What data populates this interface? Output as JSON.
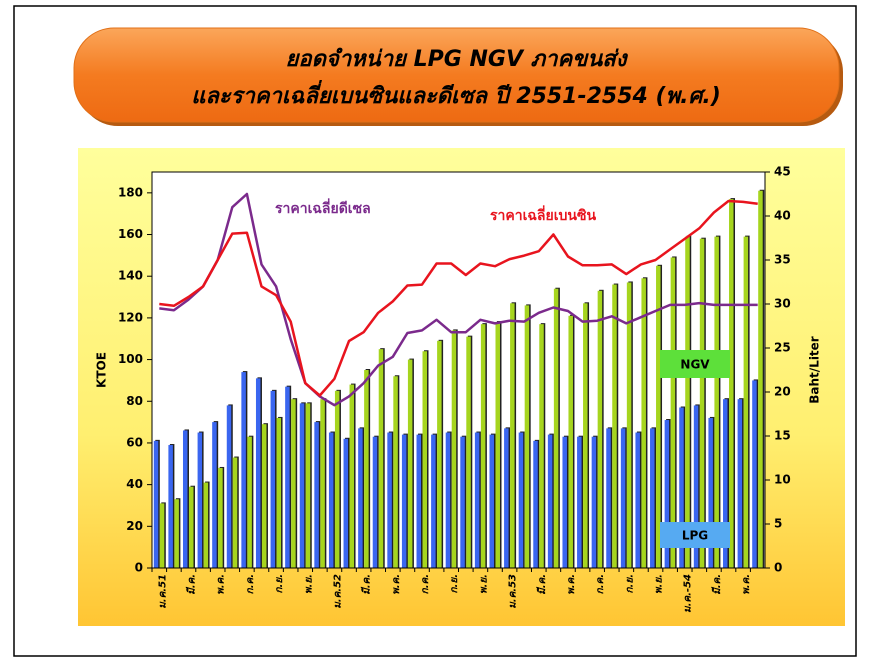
{
  "chart_data": {
    "type": "bar",
    "title": [
      "ยอดจำหน่าย LPG  NGV ภาคขนส่ง",
      "และราคาเฉลี่ยเบนซินและดีเซล ปี 2551-2554 (พ.ศ.)"
    ],
    "y_label": "KTOE",
    "y2_label": "Baht/Liter",
    "categories": [
      "ม.ค.51",
      null,
      "มี.ค.",
      null,
      "พ.ค.",
      null,
      "ก.ค.",
      null,
      "ก.ย.",
      null,
      "พ.ย.",
      null,
      "ม.ค.52",
      null,
      "มี.ค.",
      null,
      "พ.ค.",
      null,
      "ก.ค.",
      null,
      "ก.ย.",
      null,
      "พ.ย.",
      null,
      "ม.ค.53",
      null,
      "มี.ค.",
      null,
      "พ.ค.",
      null,
      "ก.ค.",
      null,
      "ก.ย.",
      null,
      "พ.ย.",
      null,
      "ม.ค.-54",
      null,
      "มี.ค.",
      null,
      "พ.ค.",
      null
    ],
    "series": [
      {
        "name": "LPG",
        "color": "#3a66f0",
        "values": [
          61,
          59,
          66,
          65,
          70,
          78,
          94,
          91,
          85,
          87,
          79,
          70,
          65,
          62,
          67,
          63,
          65,
          64,
          64,
          64,
          65,
          63,
          65,
          64,
          67,
          65,
          61,
          64,
          63,
          63,
          63,
          67,
          67,
          65,
          67,
          71,
          77,
          78,
          72,
          81,
          81,
          90
        ]
      },
      {
        "name": "NGV",
        "color": "#a6d51e",
        "values": [
          31,
          33,
          39,
          41,
          48,
          53,
          63,
          69,
          72,
          81,
          79,
          81,
          85,
          88,
          95,
          105,
          92,
          100,
          104,
          109,
          114,
          111,
          117,
          118,
          127,
          126,
          117,
          134,
          121,
          127,
          133,
          136,
          137,
          139,
          145,
          149,
          159,
          158,
          159,
          177,
          159,
          181
        ]
      },
      {
        "name": "ราคาเฉลี่ยดีเซล",
        "color": "#7b2a8c",
        "axis": "y2",
        "values": [
          29.5,
          29.3,
          30.5,
          32,
          35,
          41,
          42.5,
          34.5,
          32,
          26,
          21,
          19.5,
          18.5,
          19.5,
          21,
          23,
          24,
          26.7,
          27,
          28.2,
          26.8,
          26.8,
          28.2,
          27.8,
          28.1,
          28,
          29,
          29.6,
          29.2,
          28,
          28.1,
          28.6,
          27.8,
          28.5,
          29.2,
          29.9,
          29.9,
          30.1,
          29.9,
          29.9,
          29.9,
          29.9
        ]
      },
      {
        "name": "ราคาเฉลี่ยเบนซิน",
        "color": "#e8141e",
        "axis": "y2",
        "values": [
          30,
          29.8,
          30.8,
          32,
          35,
          38,
          38.1,
          32,
          31,
          28,
          21,
          19.6,
          21.5,
          25.8,
          26.8,
          29,
          30.3,
          32.1,
          32.2,
          34.6,
          34.6,
          33.3,
          34.6,
          34.3,
          35.1,
          35.5,
          36,
          37.9,
          35.4,
          34.4,
          34.4,
          34.5,
          33.4,
          34.5,
          35,
          36.2,
          37.4,
          38.6,
          40.4,
          41.7,
          41.6,
          41.4
        ]
      }
    ],
    "ylim": [
      0,
      190
    ],
    "yticks": [
      0,
      20,
      40,
      60,
      80,
      100,
      120,
      140,
      160,
      180
    ],
    "y2lim": [
      0,
      45
    ],
    "y2ticks": [
      0,
      5,
      10,
      15,
      20,
      25,
      30,
      35,
      40,
      45
    ],
    "grid": false
  }
}
